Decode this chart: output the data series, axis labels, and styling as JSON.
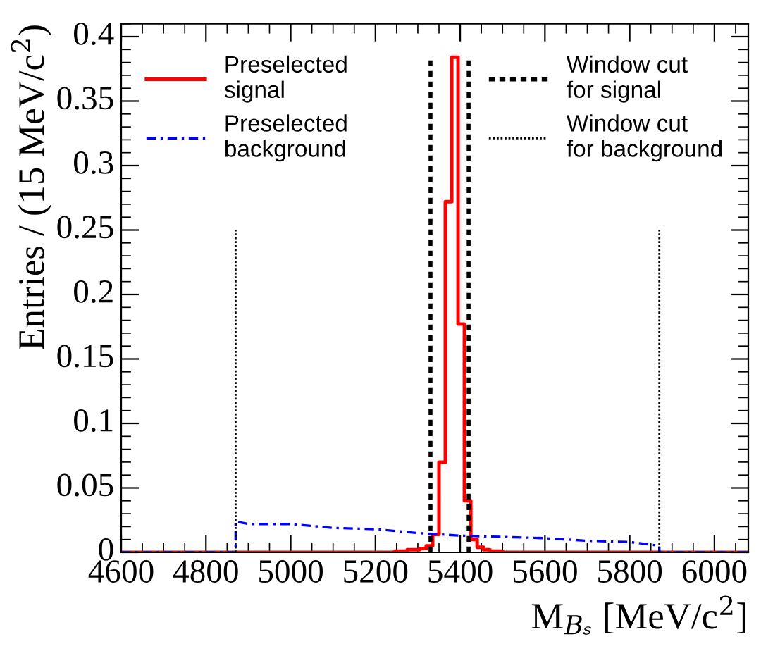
{
  "chart_data": {
    "type": "line",
    "xlabel": "M$_{Bₛ}$ [MeV/c$^{2}$]",
    "ylabel": "Entries / (15 MeV/c$^{2}$)",
    "series": [
      {
        "name": "Preselected\nsignal",
        "color": "#ff0000",
        "type": "step",
        "line_style": "solid",
        "x": [
          4600,
          5245,
          5260,
          5275,
          5290,
          5305,
          5320,
          5335,
          5350,
          5365,
          5380,
          5395,
          5410,
          5425,
          5440,
          5455,
          5470,
          5485,
          5500,
          6080
        ],
        "values": [
          0,
          0.001,
          0.001,
          0.002,
          0.002,
          0.003,
          0.005,
          0.014,
          0.07,
          0.272,
          0.384,
          0.177,
          0.04,
          0.01,
          0.004,
          0.002,
          0.001,
          0.001,
          0,
          0
        ]
      },
      {
        "name": "Preselected\nbackground",
        "color": "#0000ff",
        "line_style": "dashdot",
        "x": [
          4600,
          4870,
          4870,
          4900,
          5000,
          5100,
          5200,
          5300,
          5400,
          5500,
          5600,
          5700,
          5800,
          5850,
          5870,
          5870,
          6080
        ],
        "values": [
          0,
          0,
          0.024,
          0.022,
          0.022,
          0.019,
          0.018,
          0.015,
          0.013,
          0.012,
          0.011,
          0.009,
          0.008,
          0.006,
          0.005,
          0,
          0
        ]
      },
      {
        "name": "Window cut\nfor signal",
        "color": "#000000",
        "line_style": "dashed",
        "x": [
          5330,
          5330
        ],
        "values": [
          0,
          0.383
        ]
      },
      {
        "color": "#000000",
        "line_style": "dashed",
        "x": [
          5420,
          5420
        ],
        "values": [
          0,
          0.383
        ]
      },
      {
        "name": "Window cut\nfor background",
        "color": "#000000",
        "line_style": "dotted",
        "x": [
          4870,
          4870
        ],
        "values": [
          0,
          0.25
        ]
      },
      {
        "color": "#000000",
        "line_style": "dotted",
        "x": [
          5870,
          5870
        ],
        "values": [
          0,
          0.25
        ]
      }
    ],
    "xlim": [
      4600,
      6080
    ],
    "xticks": [
      4600,
      4800,
      5000,
      5200,
      5400,
      5600,
      5800,
      6000
    ],
    "ylim": [
      0,
      0.41
    ],
    "yticks": [
      0,
      0.05,
      0.1,
      0.15,
      0.2,
      0.25,
      0.3,
      0.35,
      0.4
    ],
    "legend": "top",
    "grid": false
  }
}
